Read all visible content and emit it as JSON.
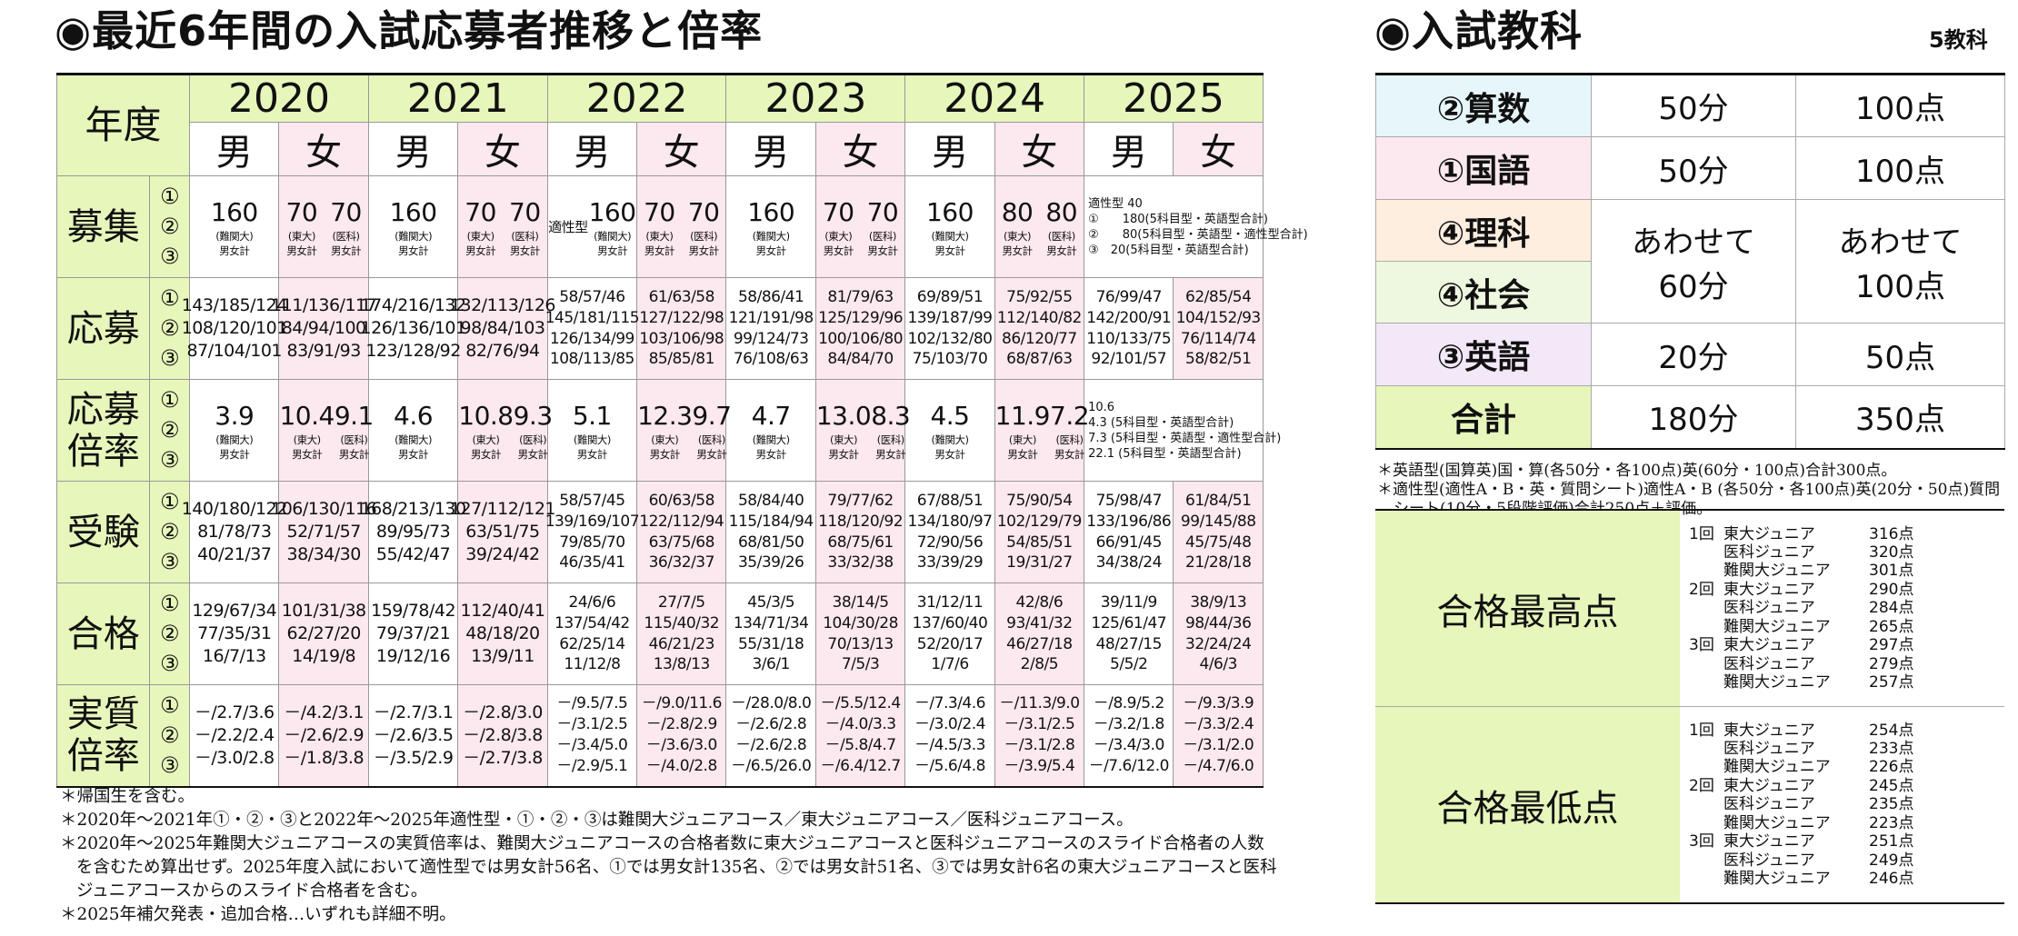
{
  "history": {
    "title": "◉最近6年間の入試応募者推移と倍率",
    "header_label": "年度",
    "years": [
      "2020",
      "2021",
      "2022",
      "2023",
      "2024",
      "2025"
    ],
    "male": "男",
    "female": "女",
    "row_labels": {
      "recruit": "募集",
      "apply": "応募",
      "apply_rate": [
        "応募",
        "倍率"
      ],
      "exam": "受験",
      "pass": "合格",
      "real_rate": [
        "実質",
        "倍率"
      ]
    },
    "idx": [
      "①",
      "②",
      "③"
    ],
    "paren": {
      "nankan": "(難関大)",
      "todai": "(東大)",
      "ika": "(医科)",
      "mf": "男女計"
    },
    "recruit": {
      "y2020": [
        "160",
        "70",
        "70"
      ],
      "y2021": [
        "160",
        "70",
        "70"
      ],
      "y2022_label": "適性型",
      "y2022": [
        "160",
        "70",
        "70"
      ],
      "y2023": [
        "160",
        "70",
        "70"
      ],
      "y2024": [
        "160",
        "80",
        "80"
      ],
      "y2025_lines": [
        "適性型 40",
        "①　　180(5科目型・英語型合計)",
        "②　　80(5科目型・英語型・適性型合計)",
        "③　20(5科目型・英語型合計)"
      ]
    },
    "apply": {
      "y2020": {
        "m": [
          "143/185/124",
          "108/120/101",
          "87/104/101"
        ],
        "f": [
          "111/136/117",
          "84/94/100",
          "83/91/93"
        ]
      },
      "y2021": {
        "m": [
          "174/216/132",
          "126/136/101",
          "123/128/92"
        ],
        "f": [
          "132/113/126",
          "98/84/103",
          "82/76/94"
        ]
      },
      "y2022": {
        "m": [
          "58/57/46",
          "145/181/115",
          "126/134/99",
          "108/113/85"
        ],
        "f": [
          "61/63/58",
          "127/122/98",
          "103/106/98",
          "85/85/81"
        ]
      },
      "y2023": {
        "m": [
          "58/86/41",
          "121/191/98",
          "99/124/73",
          "76/108/63"
        ],
        "f": [
          "81/79/63",
          "125/129/96",
          "100/106/80",
          "84/84/70"
        ]
      },
      "y2024": {
        "m": [
          "69/89/51",
          "139/187/99",
          "102/132/80",
          "75/103/70"
        ],
        "f": [
          "75/92/55",
          "112/140/82",
          "86/120/77",
          "68/87/63"
        ]
      },
      "y2025": {
        "m": [
          "76/99/47",
          "142/200/91",
          "110/133/75",
          "92/101/57"
        ],
        "f": [
          "62/85/54",
          "104/152/93",
          "76/114/74",
          "58/82/51"
        ]
      }
    },
    "apply_rate": {
      "y2020": [
        "3.9",
        "10.4",
        "9.1"
      ],
      "y2021": [
        "4.6",
        "10.8",
        "9.3"
      ],
      "y2022": [
        "5.1",
        "12.3",
        "9.7"
      ],
      "y2023": [
        "4.7",
        "13.0",
        "8.3"
      ],
      "y2024": [
        "4.5",
        "11.9",
        "7.2"
      ],
      "y2025_lines": [
        "10.6",
        "4.3 (5科目型・英語型合計)",
        "7.3 (5科目型・英語型・適性型合計)",
        "22.1 (5科目型・英語型合計)"
      ]
    },
    "exam": {
      "y2020": {
        "m": [
          "140/180/122",
          "81/78/73",
          "40/21/37"
        ],
        "f": [
          "106/130/116",
          "52/71/57",
          "38/34/30"
        ]
      },
      "y2021": {
        "m": [
          "168/213/130",
          "89/95/73",
          "55/42/47"
        ],
        "f": [
          "127/112/121",
          "63/51/75",
          "39/24/42"
        ]
      },
      "y2022": {
        "m": [
          "58/57/45",
          "139/169/107",
          "79/85/70",
          "46/35/41"
        ],
        "f": [
          "60/63/58",
          "122/112/94",
          "63/75/68",
          "36/32/37"
        ]
      },
      "y2023": {
        "m": [
          "58/84/40",
          "115/184/94",
          "68/81/50",
          "35/39/26"
        ],
        "f": [
          "79/77/62",
          "118/120/92",
          "68/75/61",
          "33/32/38"
        ]
      },
      "y2024": {
        "m": [
          "67/88/51",
          "134/180/97",
          "72/90/56",
          "33/39/29"
        ],
        "f": [
          "75/90/54",
          "102/129/79",
          "54/85/51",
          "19/31/27"
        ]
      },
      "y2025": {
        "m": [
          "75/98/47",
          "133/196/86",
          "66/91/45",
          "34/38/24"
        ],
        "f": [
          "61/84/51",
          "99/145/88",
          "45/75/48",
          "21/28/18"
        ]
      }
    },
    "pass": {
      "y2020": {
        "m": [
          "129/67/34",
          "77/35/31",
          "16/7/13"
        ],
        "f": [
          "101/31/38",
          "62/27/20",
          "14/19/8"
        ]
      },
      "y2021": {
        "m": [
          "159/78/42",
          "79/37/21",
          "19/12/16"
        ],
        "f": [
          "112/40/41",
          "48/18/20",
          "13/9/11"
        ]
      },
      "y2022": {
        "m": [
          "24/6/6",
          "137/54/42",
          "62/25/14",
          "11/12/8"
        ],
        "f": [
          "27/7/5",
          "115/40/32",
          "46/21/23",
          "13/8/13"
        ]
      },
      "y2023": {
        "m": [
          "45/3/5",
          "134/71/34",
          "55/31/18",
          "3/6/1"
        ],
        "f": [
          "38/14/5",
          "104/30/28",
          "70/13/13",
          "7/5/3"
        ]
      },
      "y2024": {
        "m": [
          "31/12/11",
          "137/60/40",
          "52/20/17",
          "1/7/6"
        ],
        "f": [
          "42/8/6",
          "93/41/32",
          "46/27/18",
          "2/8/5"
        ]
      },
      "y2025": {
        "m": [
          "39/11/9",
          "125/61/47",
          "48/27/15",
          "5/5/2"
        ],
        "f": [
          "38/9/13",
          "98/44/36",
          "32/24/24",
          "4/6/3"
        ]
      }
    },
    "real_rate": {
      "y2020": {
        "m": [
          "－/2.7/3.6",
          "－/2.2/2.4",
          "－/3.0/2.8"
        ],
        "f": [
          "－/4.2/3.1",
          "－/2.6/2.9",
          "－/1.8/3.8"
        ]
      },
      "y2021": {
        "m": [
          "－/2.7/3.1",
          "－/2.6/3.5",
          "－/3.5/2.9"
        ],
        "f": [
          "－/2.8/3.0",
          "－/2.8/3.8",
          "－/2.7/3.8"
        ]
      },
      "y2022": {
        "m": [
          "－/9.5/7.5",
          "－/3.1/2.5",
          "－/3.4/5.0",
          "－/2.9/5.1"
        ],
        "f": [
          "－/9.0/11.6",
          "－/2.8/2.9",
          "－/3.6/3.0",
          "－/4.0/2.8"
        ]
      },
      "y2023": {
        "m": [
          "－/28.0/8.0",
          "－/2.6/2.8",
          "－/2.6/2.8",
          "－/6.5/26.0"
        ],
        "f": [
          "－/5.5/12.4",
          "－/4.0/3.3",
          "－/5.8/4.7",
          "－/6.4/12.7"
        ]
      },
      "y2024": {
        "m": [
          "－/7.3/4.6",
          "－/3.0/2.4",
          "－/4.5/3.3",
          "－/5.6/4.8"
        ],
        "f": [
          "－/11.3/9.0",
          "－/3.1/2.5",
          "－/3.1/2.8",
          "－/3.9/5.4"
        ]
      },
      "y2025": {
        "m": [
          "－/8.9/5.2",
          "－/3.2/1.8",
          "－/3.4/3.0",
          "－/7.6/12.0"
        ],
        "f": [
          "－/9.3/3.9",
          "－/3.3/2.4",
          "－/3.1/2.0",
          "－/4.7/6.0"
        ]
      }
    },
    "footnotes": [
      "＊帰国生を含む。",
      "＊2020年～2021年①・②・③と2022年～2025年適性型・①・②・③は難関大ジュニアコース／東大ジュニアコース／医科ジュニアコース。",
      "＊2020年～2025年難関大ジュニアコースの実質倍率は、難関大ジュニアコースの合格者数に東大ジュニアコースと医科ジュニアコースのスライド合格者の人数を含むため算出せず。2025年度入試において適性型では男女計56名、①では男女計135名、②では男女計51名、③では男女計6名の東大ジュニアコースと医科ジュニアコースからのスライド合格者を含む。",
      "＊2025年補欠発表・追加合格…いずれも詳細不明。"
    ]
  },
  "subjects": {
    "title": "◉入試教科",
    "count": "5教科",
    "rows": [
      {
        "name": "②算数",
        "time": "50分",
        "points": "100点",
        "color": "#e6f6fb"
      },
      {
        "name": "①国語",
        "time": "50分",
        "points": "100点",
        "color": "#fce8ef"
      },
      {
        "name": "④理科",
        "color": "#fdeee0"
      },
      {
        "name": "④社会",
        "color": "#eef8e0"
      },
      {
        "name": "③英語",
        "time": "20分",
        "points": "50点",
        "color": "#f3e8f8"
      },
      {
        "name": "合計",
        "time": "180分",
        "points": "350点",
        "color": "#e7f6bb"
      }
    ],
    "combined_time": [
      "あわせて",
      "60分"
    ],
    "combined_points": [
      "あわせて",
      "100点"
    ],
    "notes": [
      "＊英語型(国算英)国・算(各50分・各100点)英(60分・100点)合計300点。",
      "＊適性型(適性A・B・英・質問シート)適性A・B (各50分・各100点)英(20分・50点)質問シート(10分・5段階評価)合計250点＋評価。"
    ]
  },
  "scores": {
    "max_label": "合格最高点",
    "min_label": "合格最低点",
    "max": [
      [
        "1回",
        "東大ジュニア",
        "316点"
      ],
      [
        "",
        "医科ジュニア",
        "320点"
      ],
      [
        "",
        "難関大ジュニア",
        "301点"
      ],
      [
        "2回",
        "東大ジュニア",
        "290点"
      ],
      [
        "",
        "医科ジュニア",
        "284点"
      ],
      [
        "",
        "難関大ジュニア",
        "265点"
      ],
      [
        "3回",
        "東大ジュニア",
        "297点"
      ],
      [
        "",
        "医科ジュニア",
        "279点"
      ],
      [
        "",
        "難関大ジュニア",
        "257点"
      ]
    ],
    "min": [
      [
        "1回",
        "東大ジュニア",
        "254点"
      ],
      [
        "",
        "医科ジュニア",
        "233点"
      ],
      [
        "",
        "難関大ジュニア",
        "226点"
      ],
      [
        "2回",
        "東大ジュニア",
        "245点"
      ],
      [
        "",
        "医科ジュニア",
        "235点"
      ],
      [
        "",
        "難関大ジュニア",
        "223点"
      ],
      [
        "3回",
        "東大ジュニア",
        "251点"
      ],
      [
        "",
        "医科ジュニア",
        "249点"
      ],
      [
        "",
        "難関大ジュニア",
        "246点"
      ]
    ]
  }
}
